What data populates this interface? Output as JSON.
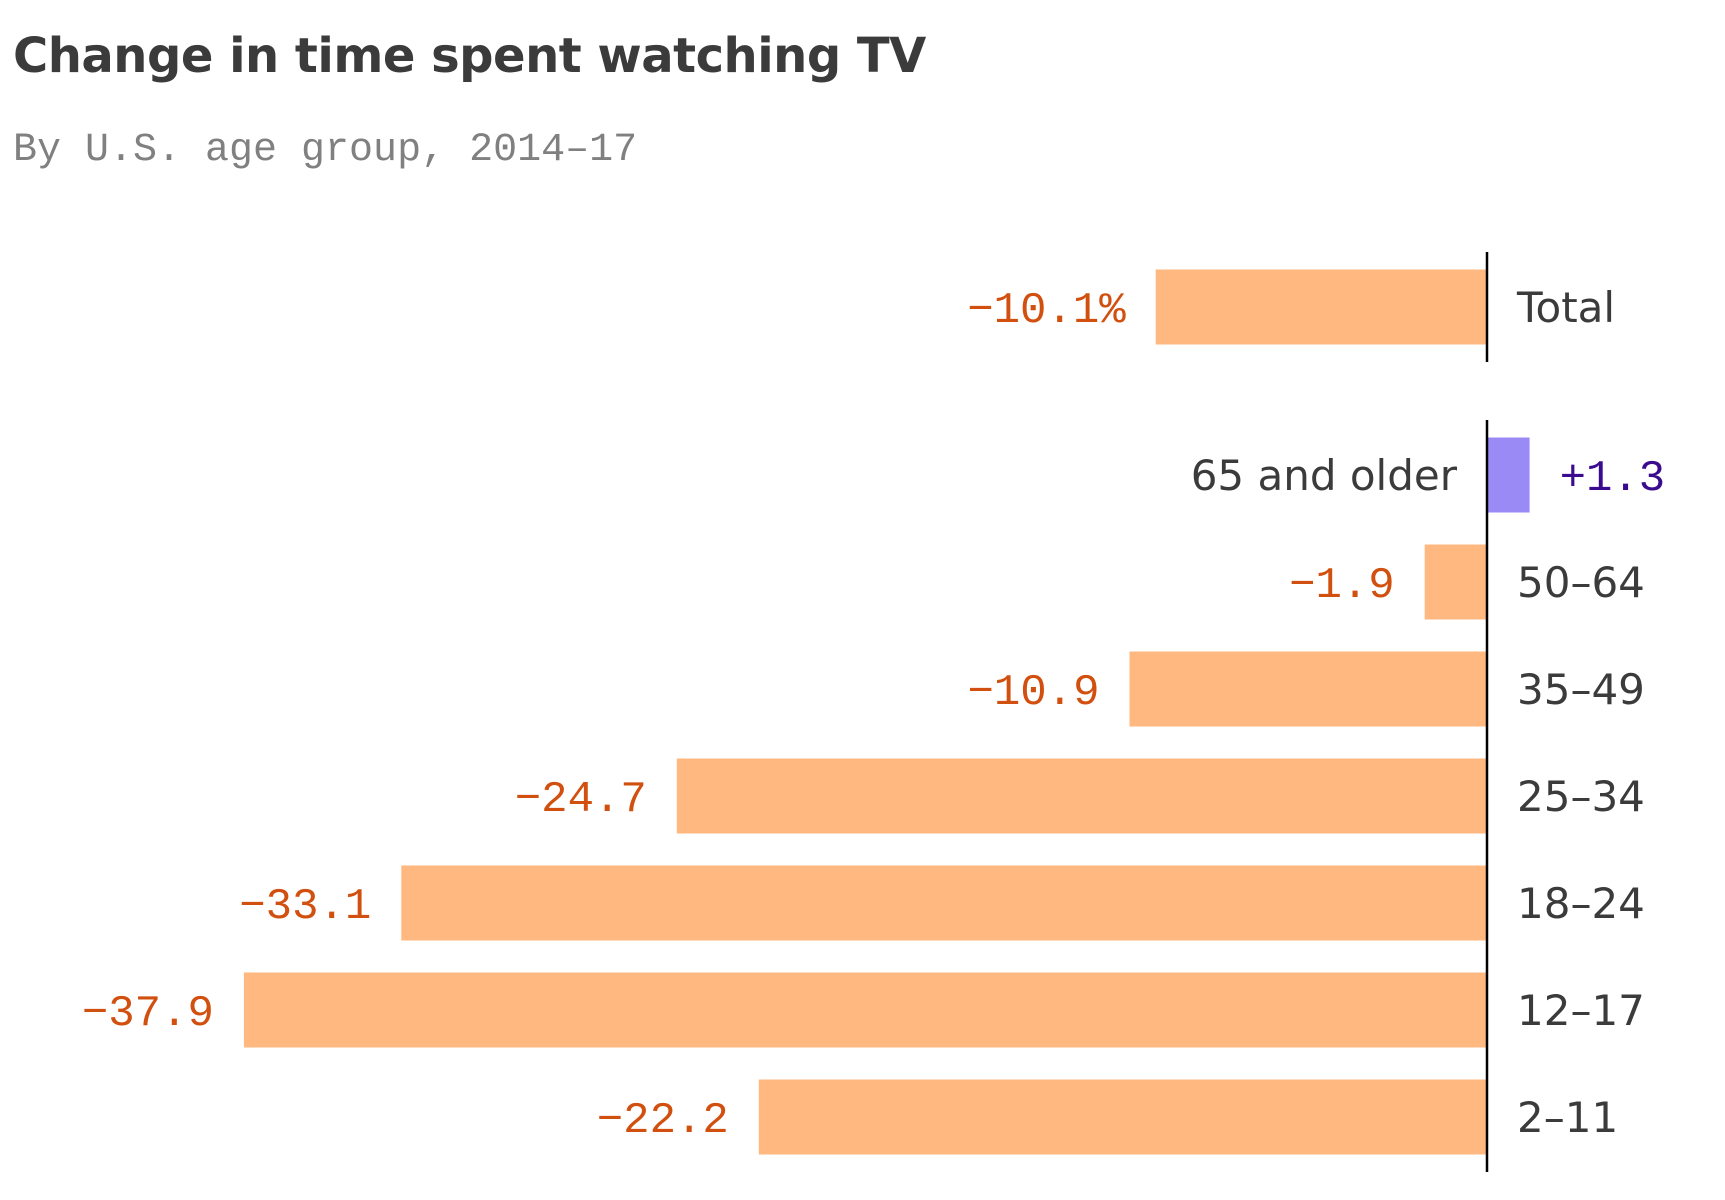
{
  "chart_data": {
    "type": "bar",
    "orientation": "horizontal",
    "title": "Change in time spent watching TV",
    "subtitle": "By U.S. age group, 2014–17",
    "unit": "%",
    "total": {
      "category": "Total",
      "value": -10.1,
      "label": "−10.1%"
    },
    "categories": [
      "65 and older",
      "50–64",
      "35–49",
      "25–34",
      "18–24",
      "12–17",
      "2–11"
    ],
    "values": [
      1.3,
      -1.9,
      -10.9,
      -24.7,
      -33.1,
      -37.9,
      -22.2
    ],
    "value_labels": [
      "+1.3",
      "−1.9",
      "−10.9",
      "−24.7",
      "−33.1",
      "−37.9",
      "−22.2"
    ],
    "xlim": [
      -40,
      3
    ],
    "grid": false,
    "legend": "none",
    "colors": {
      "negative_bar": "#FFB880",
      "positive_bar": "#9A8AF5",
      "negative_text": "#D2500F",
      "positive_text": "#3A0B8F",
      "category_text": "#3B3B3B",
      "axis_line": "#000000"
    }
  }
}
